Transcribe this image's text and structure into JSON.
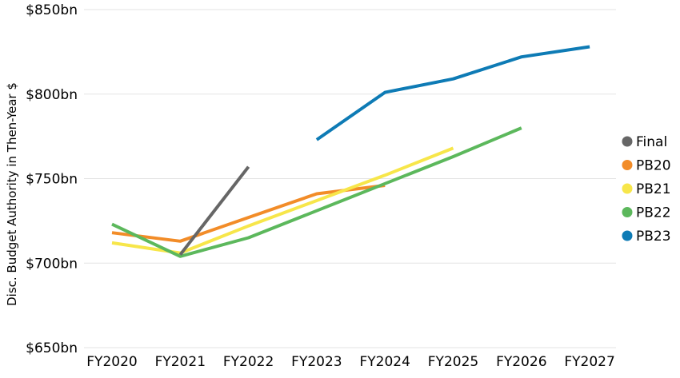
{
  "chart_data": {
    "type": "line",
    "title": "",
    "xlabel": "",
    "ylabel": "Disc. Budget Authority in Then-Year $",
    "categories": [
      "FY2020",
      "FY2021",
      "FY2022",
      "FY2023",
      "FY2024",
      "FY2025",
      "FY2026",
      "FY2027"
    ],
    "y_ticks": [
      {
        "value": 650,
        "label": "$650bn"
      },
      {
        "value": 700,
        "label": "$700bn"
      },
      {
        "value": 750,
        "label": "$750bn"
      },
      {
        "value": 800,
        "label": "$800bn"
      },
      {
        "value": 850,
        "label": "$850bn"
      }
    ],
    "ylim": [
      650,
      850
    ],
    "grid": true,
    "legend_position": "right",
    "series": [
      {
        "name": "Final",
        "color": "#666666",
        "values": [
          null,
          705,
          757,
          null,
          null,
          null,
          null,
          null
        ]
      },
      {
        "name": "PB20",
        "color": "#f28c28",
        "values": [
          718,
          713,
          727,
          741,
          746,
          null,
          null,
          null
        ]
      },
      {
        "name": "PB21",
        "color": "#f7e64a",
        "values": [
          712,
          706,
          722,
          737,
          752,
          768,
          null,
          null
        ]
      },
      {
        "name": "PB22",
        "color": "#5cb85c",
        "values": [
          723,
          704,
          715,
          731,
          747,
          763,
          780,
          null
        ]
      },
      {
        "name": "PB23",
        "color": "#0e7bb5",
        "values": [
          null,
          null,
          null,
          773,
          801,
          809,
          822,
          828
        ]
      }
    ]
  }
}
